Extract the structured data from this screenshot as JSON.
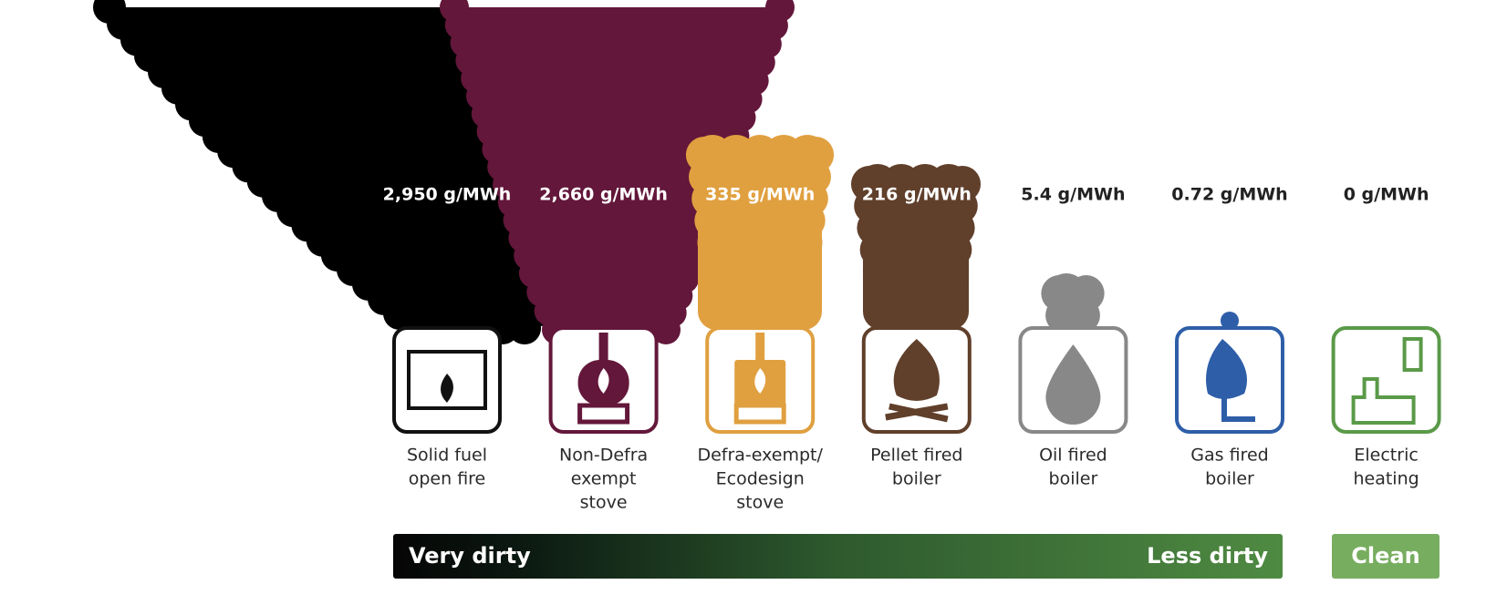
{
  "items": [
    {
      "emission": "2,950 g/MWh",
      "label": [
        "Solid fuel",
        "open fire"
      ]
    },
    {
      "emission": "2,660 g/MWh",
      "label": [
        "Non-Defra",
        "exempt",
        "stove"
      ]
    },
    {
      "emission": "335 g/MWh",
      "label": [
        "Defra-exempt/",
        "Ecodesign",
        "stove"
      ]
    },
    {
      "emission": "216 g/MWh",
      "label": [
        "Pellet fired",
        "boiler"
      ]
    },
    {
      "emission": "5.4 g/MWh",
      "label": [
        "Oil fired",
        "boiler"
      ]
    },
    {
      "emission": "0.72 g/MWh",
      "label": [
        "Gas fired",
        "boiler"
      ]
    },
    {
      "emission": "0 g/MWh",
      "label": [
        "Electric",
        "heating"
      ]
    }
  ],
  "scale": {
    "dirty_start": "Very dirty",
    "dirty_end": "Less dirty",
    "clean": "Clean"
  }
}
